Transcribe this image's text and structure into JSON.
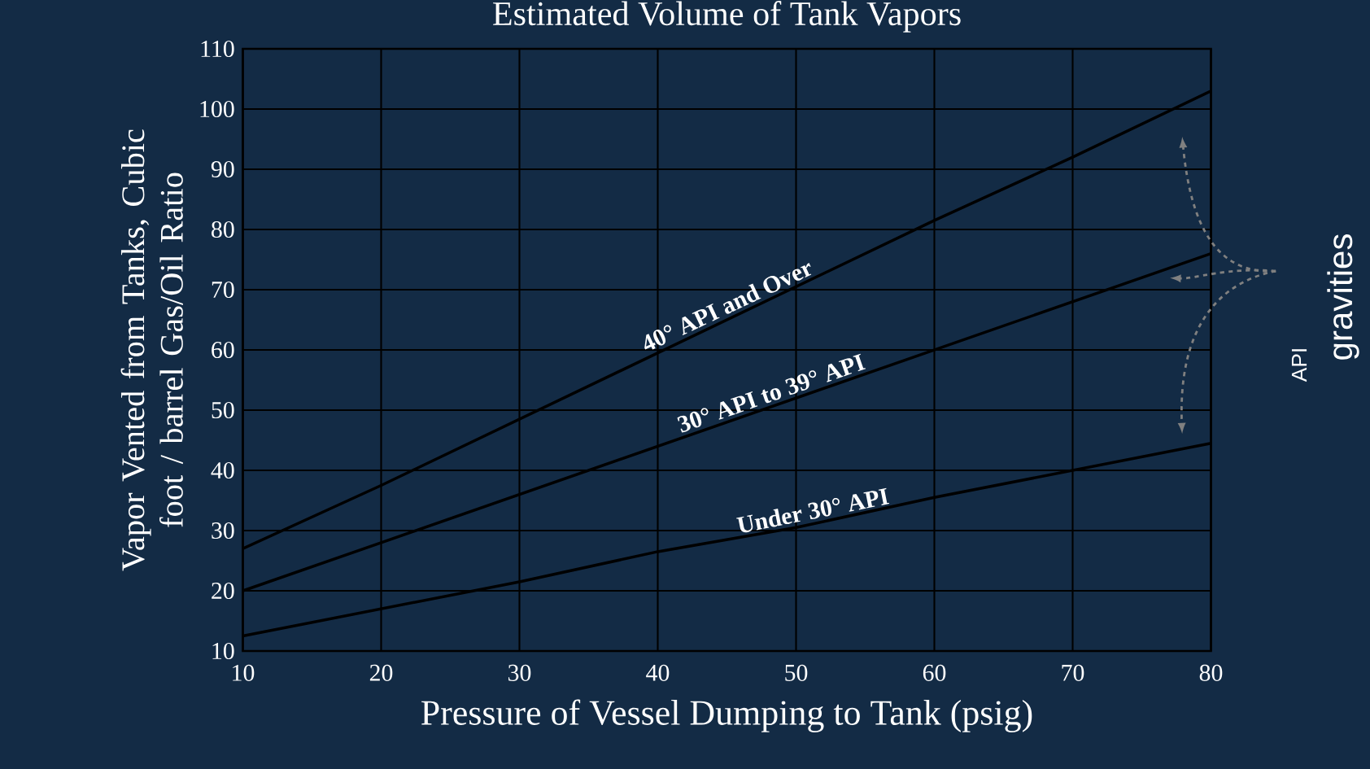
{
  "chart_data": {
    "type": "line",
    "title": "Estimated Volume of Tank Vapors",
    "xlabel": "Pressure of Vessel Dumping to Tank (psig)",
    "ylabel": "Vapor Vented from Tanks, Cubic foot / barrel Gas/Oil Ratio",
    "x": [
      10,
      20,
      30,
      40,
      50,
      60,
      70,
      80
    ],
    "series": [
      {
        "name": "40° API and Over",
        "color": "#000000",
        "values": [
          27,
          37.5,
          48.5,
          59.5,
          70.5,
          81.5,
          92,
          103
        ]
      },
      {
        "name": "30° API to 39° API",
        "color": "#000000",
        "values": [
          20,
          28,
          36,
          44,
          52,
          60,
          68,
          76
        ]
      },
      {
        "name": "Under 30° API",
        "color": "#000000",
        "values": [
          12.5,
          17,
          21.5,
          26.5,
          30.5,
          35.5,
          40,
          44.5
        ]
      }
    ],
    "xlim": [
      10,
      80
    ],
    "ylim": [
      10,
      110
    ],
    "xticks": [
      10,
      20,
      30,
      40,
      50,
      60,
      70,
      80
    ],
    "yticks": [
      10,
      20,
      30,
      40,
      50,
      60,
      70,
      80,
      90,
      100,
      110
    ],
    "grid": true,
    "legend": false,
    "marker": "none",
    "line_style": "solid",
    "annotations": [
      "API",
      "gravities"
    ]
  }
}
